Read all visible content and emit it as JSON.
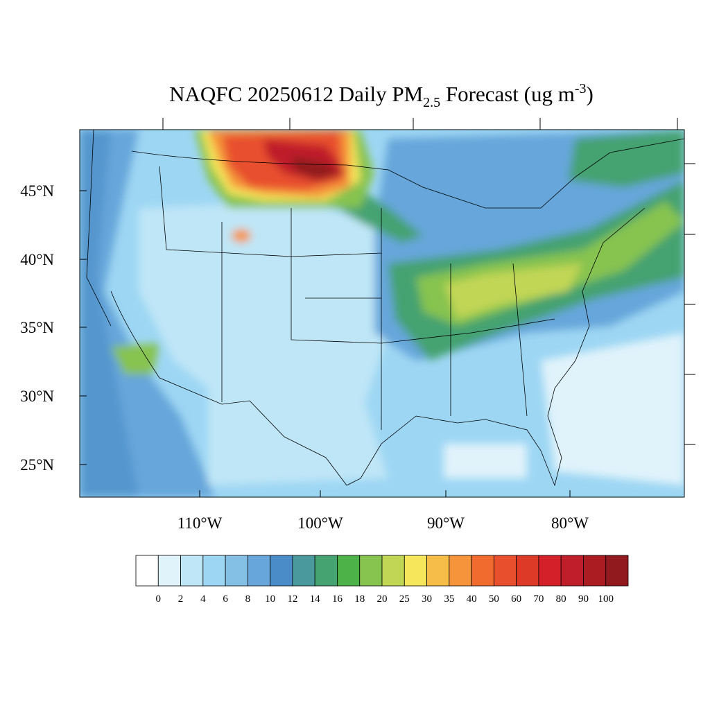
{
  "title": {
    "main": "NAQFC 20250612 Daily PM",
    "subscript": "2.5",
    "middle": " Forecast (ug m",
    "superscript": "-3",
    "end": ")"
  },
  "map": {
    "lat_labels": [
      "45°N",
      "40°N",
      "35°N",
      "30°N",
      "25°N"
    ],
    "lon_labels": [
      "110°W",
      "100°W",
      "90°W",
      "80°W"
    ]
  },
  "colorbar": {
    "labels": [
      "0",
      "2",
      "4",
      "6",
      "8",
      "10",
      "12",
      "14",
      "16",
      "18",
      "20",
      "25",
      "30",
      "35",
      "40",
      "50",
      "60",
      "70",
      "80",
      "90",
      "100"
    ],
    "colors": [
      "#ffffff",
      "#e0f3fb",
      "#bfe6f7",
      "#9dd6f3",
      "#84bfe6",
      "#66a6da",
      "#4a8cc7",
      "#4a9a9d",
      "#45a271",
      "#4db348",
      "#86c34f",
      "#c1d654",
      "#f6e65b",
      "#f6be48",
      "#f5943b",
      "#f16a2e",
      "#e8502d",
      "#de3a28",
      "#d42129",
      "#bf1e2a",
      "#aa1c22",
      "#901a1e"
    ]
  }
}
